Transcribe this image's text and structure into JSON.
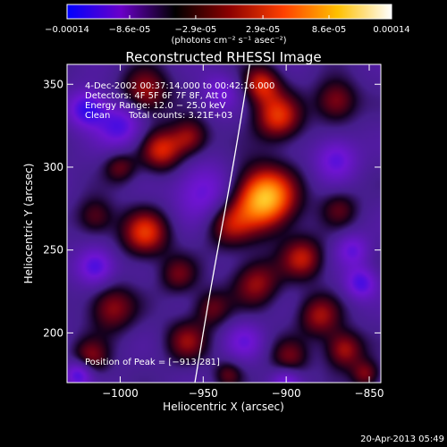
{
  "chart_data": {
    "type": "heatmap",
    "title": "Reconstructed RHESSI Image",
    "xlabel": "Heliocentric X (arcsec)",
    "ylabel": "Heliocentric Y (arcsec)",
    "xlim": [
      -1032,
      -843
    ],
    "ylim": [
      170,
      362
    ],
    "x_ticks": [
      -1000,
      -950,
      -900,
      -850
    ],
    "x_tick_labels": [
      "−1000",
      "−950",
      "−900",
      "−850"
    ],
    "y_ticks": [
      200,
      250,
      300,
      350
    ],
    "y_tick_labels": [
      "200",
      "250",
      "300",
      "350"
    ],
    "colorbar": {
      "ticks": [
        -0.00014,
        -8.6e-05,
        -2.9e-05,
        2.9e-05,
        8.6e-05,
        0.00014
      ],
      "tick_labels": [
        "−0.00014",
        "−8.6e-05",
        "−2.9e-05",
        "2.9e-05",
        "8.6e-05",
        "0.00014"
      ],
      "units_label": "(photons cm⁻² s⁻¹ asec⁻²)",
      "range": [
        -0.00014,
        0.00014
      ],
      "colors": [
        "#0000ff",
        "#6a00c8",
        "#000000",
        "#8b0000",
        "#ff4000",
        "#ffc000",
        "#ffffff"
      ]
    },
    "annotations": {
      "time_range": "4-Dec-2002 00:37:14.000 to 00:42:16.000",
      "detectors": "Detectors: 4F 5F 6F 7F 8F, Att 0",
      "energy_range": "Energy Range: 12.0 − 25.0 keV",
      "clean_label": "Clean",
      "total_counts": "Total counts: 3.21E+03",
      "peak_label": "Position of Peak = [−913,281]"
    },
    "peak": [
      -913,
      281
    ],
    "limb_curve": {
      "points": [
        [
          -955,
          170
        ],
        [
          -945,
          230
        ],
        [
          -932,
          300
        ],
        [
          -922,
          362
        ]
      ]
    },
    "blobs": [
      {
        "x": -913,
        "y": 281,
        "amp": 1.0,
        "r": 13
      },
      {
        "x": -905,
        "y": 330,
        "amp": 0.6,
        "r": 10
      },
      {
        "x": -915,
        "y": 350,
        "amp": 0.55,
        "r": 8
      },
      {
        "x": -870,
        "y": 340,
        "amp": 0.45,
        "r": 9
      },
      {
        "x": -985,
        "y": 345,
        "amp": 0.5,
        "r": 10
      },
      {
        "x": -975,
        "y": 310,
        "amp": 0.55,
        "r": 9
      },
      {
        "x": -1000,
        "y": 300,
        "amp": 0.35,
        "r": 7
      },
      {
        "x": -958,
        "y": 318,
        "amp": 0.45,
        "r": 8
      },
      {
        "x": -985,
        "y": 260,
        "amp": 0.6,
        "r": 10
      },
      {
        "x": -1015,
        "y": 270,
        "amp": 0.35,
        "r": 8
      },
      {
        "x": -935,
        "y": 265,
        "amp": 0.4,
        "r": 10
      },
      {
        "x": -890,
        "y": 245,
        "amp": 0.5,
        "r": 9
      },
      {
        "x": -868,
        "y": 275,
        "amp": 0.3,
        "r": 8
      },
      {
        "x": -918,
        "y": 230,
        "amp": 0.45,
        "r": 10
      },
      {
        "x": -965,
        "y": 235,
        "amp": 0.35,
        "r": 8
      },
      {
        "x": -1005,
        "y": 215,
        "amp": 0.45,
        "r": 10
      },
      {
        "x": -960,
        "y": 195,
        "amp": 0.4,
        "r": 9
      },
      {
        "x": -945,
        "y": 215,
        "amp": 0.35,
        "r": 8
      },
      {
        "x": -880,
        "y": 210,
        "amp": 0.45,
        "r": 9
      },
      {
        "x": -898,
        "y": 185,
        "amp": 0.35,
        "r": 8
      },
      {
        "x": -1018,
        "y": 185,
        "amp": 0.4,
        "r": 8
      },
      {
        "x": -865,
        "y": 190,
        "amp": 0.5,
        "r": 8
      },
      {
        "x": -852,
        "y": 175,
        "amp": 0.4,
        "r": 6
      },
      {
        "x": -935,
        "y": 175,
        "amp": 0.3,
        "r": 6
      },
      {
        "x": -1000,
        "y": 325,
        "amp": -0.5,
        "r": 10
      },
      {
        "x": -1020,
        "y": 335,
        "amp": -0.6,
        "r": 8
      },
      {
        "x": -950,
        "y": 285,
        "amp": -0.45,
        "r": 12
      },
      {
        "x": -1015,
        "y": 240,
        "amp": -0.55,
        "r": 8
      },
      {
        "x": -870,
        "y": 305,
        "amp": -0.45,
        "r": 9
      },
      {
        "x": -855,
        "y": 230,
        "amp": -0.5,
        "r": 7
      },
      {
        "x": -925,
        "y": 195,
        "amp": -0.35,
        "r": 8
      },
      {
        "x": -860,
        "y": 250,
        "amp": -0.4,
        "r": 7
      },
      {
        "x": -1025,
        "y": 175,
        "amp": -0.55,
        "r": 6
      },
      {
        "x": -900,
        "y": 170,
        "amp": -0.4,
        "r": 6
      },
      {
        "x": -940,
        "y": 345,
        "amp": -0.35,
        "r": 8
      }
    ]
  },
  "footer": {
    "date_stamp": "20-Apr-2013 05:49"
  }
}
